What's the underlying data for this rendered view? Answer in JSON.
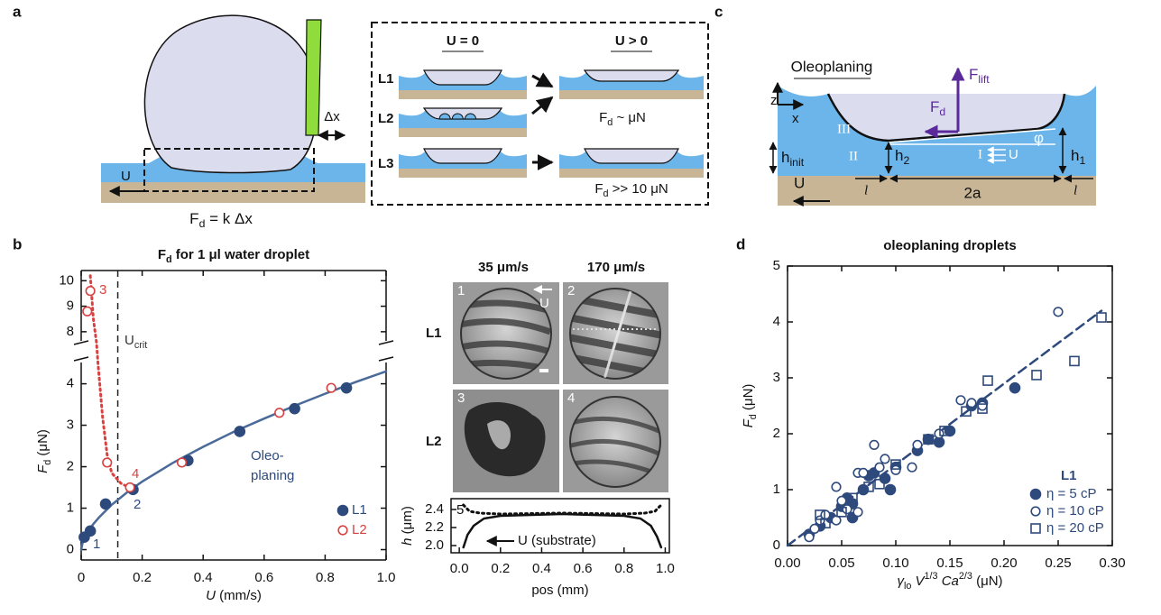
{
  "figure": {
    "panel_letters": [
      "a",
      "b",
      "c",
      "d"
    ],
    "panel_a": {
      "fd": [
        {
          "text": "F",
          "style": "normal"
        },
        {
          "text": "d",
          "style": "sub"
        },
        {
          "text": " = k Δx",
          "style": "normal"
        }
      ],
      "dx": "Δx",
      "u": "U",
      "u0": "U = 0",
      "upos": "U > 0",
      "rows": [
        "L1",
        "L2",
        "L3"
      ],
      "fd_small": [
        {
          "text": "F",
          "style": "normal"
        },
        {
          "text": "d",
          "style": "sub"
        },
        {
          "text": " ~ μN",
          "style": "normal"
        }
      ],
      "fd_large": [
        {
          "text": "F",
          "style": "normal"
        },
        {
          "text": "d",
          "style": "sub"
        },
        {
          "text": " >> 10 μN",
          "style": "normal"
        }
      ]
    },
    "panel_c": {
      "title": "Oleoplaning",
      "z": "z",
      "x": "x",
      "flift": [
        {
          "text": "F",
          "style": "normal"
        },
        {
          "text": "lift",
          "style": "sub"
        }
      ],
      "fd": [
        {
          "text": "F",
          "style": "normal"
        },
        {
          "text": "d",
          "style": "sub"
        }
      ],
      "regions": [
        "III",
        "II",
        "I"
      ],
      "u_inner": "U",
      "hinit": [
        {
          "text": "h",
          "style": "normal"
        },
        {
          "text": "init",
          "style": "sub"
        }
      ],
      "h2": [
        {
          "text": "h",
          "style": "normal"
        },
        {
          "text": "2",
          "style": "sub"
        }
      ],
      "h1": [
        {
          "text": "h",
          "style": "normal"
        },
        {
          "text": "1",
          "style": "sub"
        }
      ],
      "phi": "φ",
      "u": "U",
      "l": "l",
      "two_a": "2a"
    },
    "micrographs": {
      "speeds": [
        "35 μm/s",
        "170 μm/s"
      ],
      "rows": [
        "L1",
        "L2"
      ],
      "numbers": [
        "1",
        "2",
        "3",
        "4"
      ],
      "u": "U"
    }
  },
  "chart_data": [
    {
      "type": "scatter",
      "title": [
        {
          "text": "F",
          "style": "normal"
        },
        {
          "text": "d",
          "style": "sub"
        },
        {
          "text": " for 1 μl water droplet",
          "style": "normal"
        }
      ],
      "xlabel": [
        {
          "text": "U",
          "style": "italic"
        },
        {
          "text": " (mm/s)",
          "style": "normal"
        }
      ],
      "ylabel": [
        {
          "text": "F",
          "style": "italic"
        },
        {
          "text": "d",
          "style": "sub"
        },
        {
          "text": "  (μN)",
          "style": "normal"
        }
      ],
      "xlim": [
        0,
        1
      ],
      "xticks": [
        0,
        0.2,
        0.4,
        0.6,
        0.8,
        {
          "value": 1,
          "label": "1.0"
        }
      ],
      "ylim": [
        -0.25,
        10.4
      ],
      "y_break": [
        4.6,
        7.5
      ],
      "yticks": [
        0,
        1,
        2,
        3,
        4,
        8,
        9,
        10
      ],
      "series": [
        {
          "name": "L1",
          "color": "#2e4a7d",
          "marker": "filled-circle",
          "x": [
            0.01,
            0.03,
            0.08,
            0.17,
            0.35,
            0.52,
            0.7,
            0.87
          ],
          "values": [
            0.3,
            0.45,
            1.1,
            1.45,
            2.15,
            2.85,
            3.4,
            3.9
          ]
        },
        {
          "name": "L2",
          "color": "#d94141",
          "marker": "open-circle",
          "x": [
            0.02,
            0.03,
            0.085,
            0.16,
            0.33,
            0.65,
            0.82
          ],
          "values": [
            8.8,
            9.6,
            2.1,
            1.5,
            2.1,
            3.3,
            3.9
          ]
        }
      ],
      "curves": [
        {
          "color": "#4a6a9a",
          "style": "solid",
          "x": [
            0,
            0.005,
            0.01,
            0.02,
            0.04,
            0.06,
            0.1,
            0.15,
            0.2,
            0.3,
            0.4,
            0.5,
            0.6,
            0.7,
            0.8,
            0.9,
            1.0
          ],
          "values": [
            0,
            0.18,
            0.27,
            0.41,
            0.62,
            0.79,
            1.08,
            1.38,
            1.64,
            2.09,
            2.48,
            2.84,
            3.16,
            3.47,
            3.76,
            4.04,
            4.3
          ]
        },
        {
          "color": "#d94141",
          "style": "dotted",
          "x": [
            0.03,
            0.04,
            0.05,
            0.055,
            0.07,
            0.085,
            0.1,
            0.13,
            0.17
          ],
          "values": [
            10.2,
            8.5,
            7.6,
            4.5,
            3.2,
            2.3,
            1.85,
            1.6,
            1.45
          ]
        }
      ],
      "vline": 0.12,
      "vline_label": [
        {
          "text": "U",
          "style": "normal"
        },
        {
          "text": "crit",
          "style": "sub"
        }
      ],
      "annotations": {
        "regime": [
          "Oleo-",
          "planing"
        ],
        "points": [
          "1",
          "2",
          "3",
          "4"
        ]
      }
    },
    {
      "type": "line",
      "ylabel": [
        {
          "text": "h",
          "style": "italic"
        },
        {
          "text": " (μm)",
          "style": "normal"
        }
      ],
      "xlabel": [
        {
          "text": "pos (mm)",
          "style": "normal"
        }
      ],
      "xlim": [
        -0.04,
        1.02
      ],
      "xticks": [
        {
          "value": 0,
          "label": "0.0"
        },
        0.2,
        0.4,
        0.6,
        0.8,
        {
          "value": 1,
          "label": "1.0"
        }
      ],
      "ylim": [
        1.92,
        2.52
      ],
      "yticks": [
        {
          "value": 2,
          "label": "2.0"
        },
        2.2,
        2.4
      ],
      "series": [
        {
          "color": "#111111",
          "style": "solid",
          "x": [
            0.02,
            0.04,
            0.07,
            0.12,
            0.2,
            0.5,
            0.8,
            0.88,
            0.93,
            0.96,
            0.98
          ],
          "values": [
            1.98,
            2.12,
            2.22,
            2.3,
            2.33,
            2.35,
            2.33,
            2.3,
            2.22,
            2.1,
            1.98
          ]
        },
        {
          "color": "#111111",
          "style": "dotted",
          "x": [
            0.02,
            0.05,
            0.1,
            0.2,
            0.5,
            0.8,
            0.9,
            0.95,
            0.98
          ],
          "values": [
            2.45,
            2.38,
            2.36,
            2.35,
            2.36,
            2.35,
            2.36,
            2.38,
            2.45
          ]
        }
      ],
      "annotations": {
        "curve": "5",
        "arrow": "U (substrate)"
      }
    },
    {
      "type": "scatter",
      "title": [
        {
          "text": "oleoplaning droplets",
          "style": "normal"
        }
      ],
      "xlabel": [
        {
          "text": "γ",
          "style": "italic"
        },
        {
          "text": "lo",
          "style": "sub"
        },
        {
          "text": " V",
          "style": "italic"
        },
        {
          "text": "1/3",
          "style": "sup"
        },
        {
          "text": " Ca",
          "style": "italic"
        },
        {
          "text": "2/3",
          "style": "sup"
        },
        {
          "text": " (μN)",
          "style": "normal"
        }
      ],
      "ylabel": [
        {
          "text": "F",
          "style": "italic"
        },
        {
          "text": "d",
          "style": "sub"
        },
        {
          "text": "  (μN)",
          "style": "normal"
        }
      ],
      "xlim": [
        0,
        0.3
      ],
      "xticks": [
        {
          "value": 0,
          "label": "0.00"
        },
        {
          "value": 0.05,
          "label": "0.05"
        },
        {
          "value": 0.1,
          "label": "0.10"
        },
        {
          "value": 0.15,
          "label": "0.15"
        },
        {
          "value": 0.2,
          "label": "0.20"
        },
        {
          "value": 0.25,
          "label": "0.25"
        },
        {
          "value": 0.3,
          "label": "0.30"
        }
      ],
      "ylim": [
        0,
        5
      ],
      "yticks": [
        0,
        1,
        2,
        3,
        4,
        5
      ],
      "legend_title": "L1",
      "series": [
        {
          "name": "η = 5 cP",
          "color": "#2e4a7d",
          "marker": "filled-circle",
          "x": [
            0.02,
            0.03,
            0.04,
            0.05,
            0.055,
            0.06,
            0.07,
            0.075,
            0.09,
            0.1,
            0.095,
            0.12,
            0.13,
            0.14,
            0.15,
            0.17,
            0.18,
            0.21,
            0.06,
            0.08
          ],
          "values": [
            0.2,
            0.35,
            0.5,
            0.7,
            0.85,
            0.75,
            1.0,
            1.25,
            1.2,
            1.4,
            1.0,
            1.7,
            1.9,
            1.85,
            2.05,
            2.5,
            2.55,
            2.82,
            0.5,
            1.3
          ]
        },
        {
          "name": "η = 10 cP",
          "color": "#2e4a7d",
          "marker": "open-circle",
          "x": [
            0.02,
            0.025,
            0.03,
            0.035,
            0.045,
            0.05,
            0.055,
            0.065,
            0.07,
            0.08,
            0.085,
            0.09,
            0.1,
            0.115,
            0.12,
            0.14,
            0.16,
            0.17,
            0.18,
            0.25,
            0.045,
            0.065
          ],
          "values": [
            0.15,
            0.3,
            0.45,
            0.55,
            0.45,
            0.8,
            0.65,
            1.3,
            1.3,
            1.8,
            1.4,
            1.55,
            1.35,
            1.4,
            1.8,
            2.0,
            2.6,
            2.55,
            2.5,
            4.18,
            1.05,
            0.6
          ]
        },
        {
          "name": "η = 20 cP",
          "color": "#2e4a7d",
          "marker": "open-square",
          "x": [
            0.03,
            0.035,
            0.05,
            0.06,
            0.075,
            0.085,
            0.1,
            0.13,
            0.145,
            0.165,
            0.18,
            0.185,
            0.23,
            0.265,
            0.29
          ],
          "values": [
            0.55,
            0.4,
            0.6,
            0.85,
            1.05,
            1.1,
            1.45,
            1.9,
            2.05,
            2.4,
            2.45,
            2.95,
            3.05,
            3.3,
            4.08
          ]
        }
      ],
      "curves": [
        {
          "color": "#2e4a7d",
          "style": "dashed",
          "x": [
            0,
            0.29
          ],
          "values": [
            0,
            4.2
          ]
        }
      ]
    }
  ]
}
